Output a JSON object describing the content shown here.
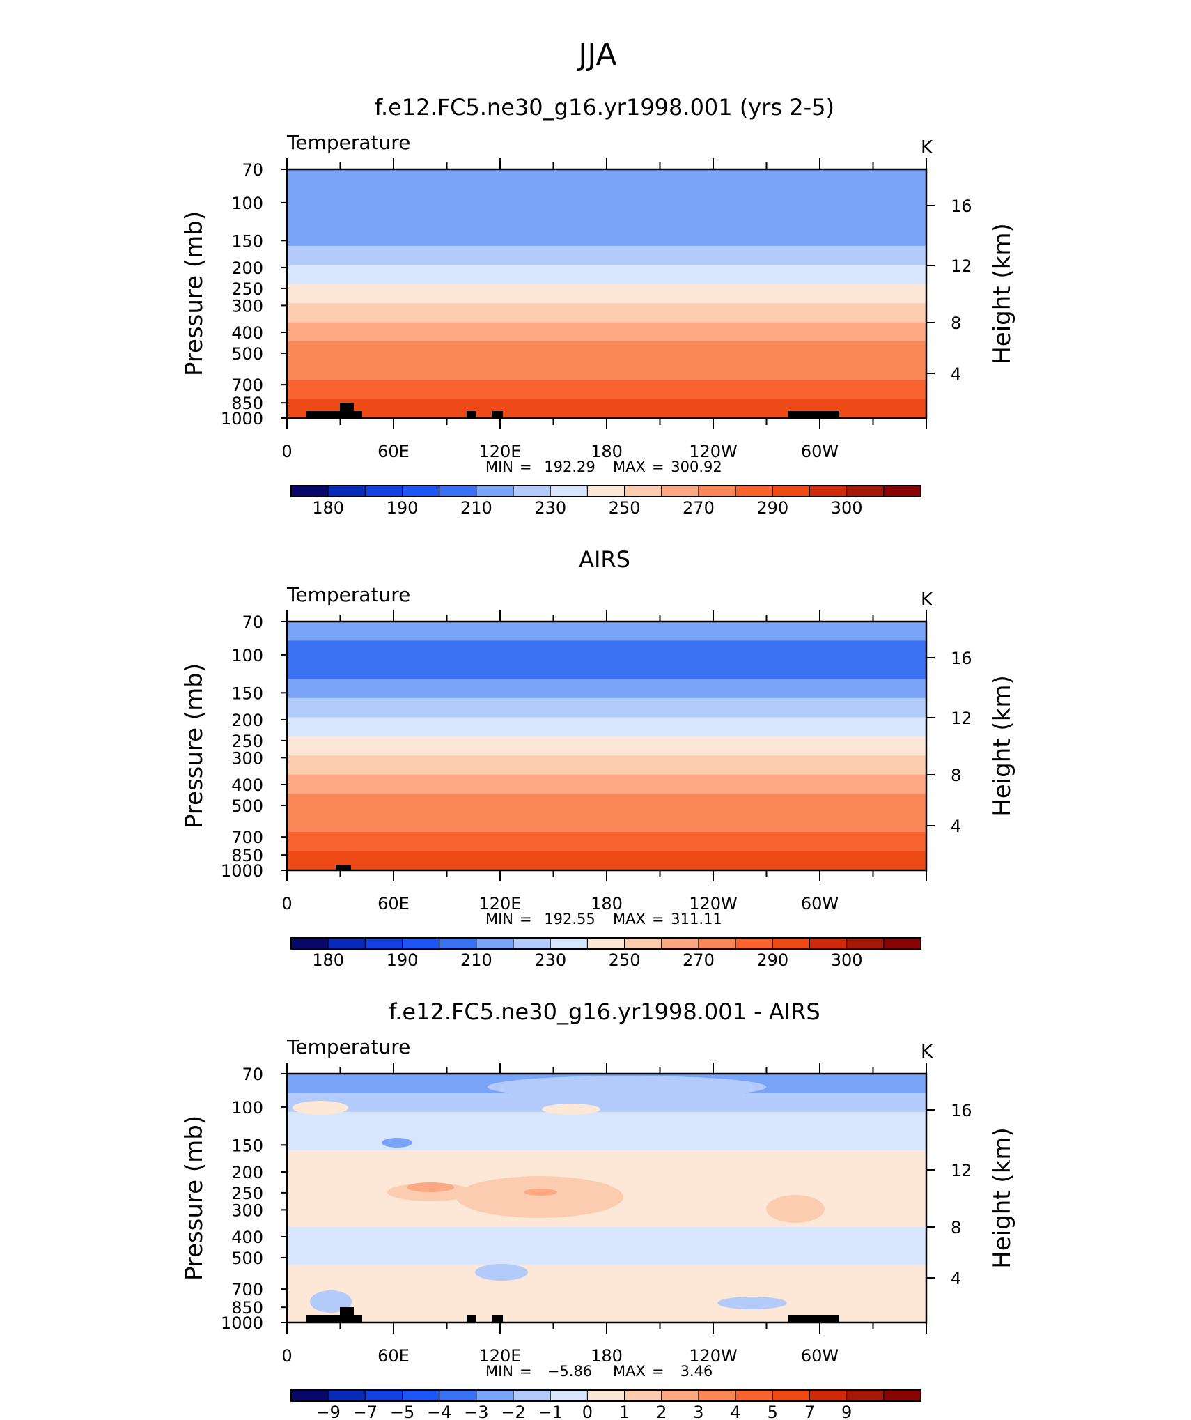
{
  "figure": {
    "title": "JJA"
  },
  "chart_data": [
    {
      "type": "contour",
      "title": "f.e12.FC5.ne30_g16.yr1998.001 (yrs 2-5)",
      "variable": "Temperature",
      "units": "K",
      "xlabel": "",
      "ylabel": "Pressure (mb)",
      "ylabel_right": "Height (km)",
      "x_ticks": [
        "0",
        "60E",
        "120E",
        "180",
        "120W",
        "60W"
      ],
      "y_ticks": [
        70,
        100,
        150,
        200,
        250,
        300,
        400,
        500,
        700,
        850,
        1000
      ],
      "y_ticks_right": [
        16,
        12,
        8,
        4
      ],
      "stats": {
        "min_label": "MIN",
        "min": "192.29",
        "max_label": "MAX",
        "max": "300.92"
      },
      "colorbar_labels": [
        "180",
        "190",
        "210",
        "230",
        "250",
        "270",
        "290",
        "300"
      ],
      "profile_bins": [
        5,
        5,
        5,
        5,
        6,
        7,
        8,
        9,
        10,
        11,
        11,
        12,
        13
      ]
    },
    {
      "type": "contour",
      "title": "AIRS",
      "variable": "Temperature",
      "units": "K",
      "xlabel": "",
      "ylabel": "Pressure (mb)",
      "ylabel_right": "Height (km)",
      "x_ticks": [
        "0",
        "60E",
        "120E",
        "180",
        "120W",
        "60W"
      ],
      "y_ticks": [
        70,
        100,
        150,
        200,
        250,
        300,
        400,
        500,
        700,
        850,
        1000
      ],
      "y_ticks_right": [
        16,
        12,
        8,
        4
      ],
      "stats": {
        "min_label": "MIN",
        "min": "192.55",
        "max_label": "MAX",
        "max": "311.11"
      },
      "colorbar_labels": [
        "180",
        "190",
        "210",
        "230",
        "250",
        "270",
        "290",
        "300"
      ],
      "profile_bins": [
        5,
        4,
        4,
        5,
        6,
        7,
        8,
        9,
        10,
        11,
        11,
        12,
        13
      ]
    },
    {
      "type": "contour",
      "title": "f.e12.FC5.ne30_g16.yr1998.001 - AIRS",
      "variable": "Temperature",
      "units": "K",
      "xlabel": "",
      "ylabel": "Pressure (mb)",
      "ylabel_right": "Height (km)",
      "x_ticks": [
        "0",
        "60E",
        "120E",
        "180",
        "120W",
        "60W"
      ],
      "y_ticks": [
        70,
        100,
        150,
        200,
        250,
        300,
        400,
        500,
        700,
        850,
        1000
      ],
      "y_ticks_right": [
        16,
        12,
        8,
        4
      ],
      "stats": {
        "min_label": "MIN",
        "min": "−5.86",
        "max_label": "MAX",
        "max": "3.46"
      },
      "colorbar_labels": [
        "−9",
        "−7",
        "−5",
        "−4",
        "−3",
        "−2",
        "−1",
        "0",
        "1",
        "2",
        "3",
        "4",
        "5",
        "7",
        "9"
      ],
      "profile_bins": [
        5,
        6,
        7,
        7,
        8,
        8,
        8,
        8,
        7,
        7,
        8,
        8,
        8
      ]
    }
  ],
  "colormap": [
    "#08086b",
    "#0a2ab8",
    "#1440e0",
    "#1e56f5",
    "#3a70f2",
    "#7aa4f7",
    "#b2cbfa",
    "#d8e6fd",
    "#fde8d8",
    "#fcccb0",
    "#fba883",
    "#f98656",
    "#f8632f",
    "#ee4a18",
    "#cf2a0c",
    "#a41808",
    "#860404"
  ]
}
